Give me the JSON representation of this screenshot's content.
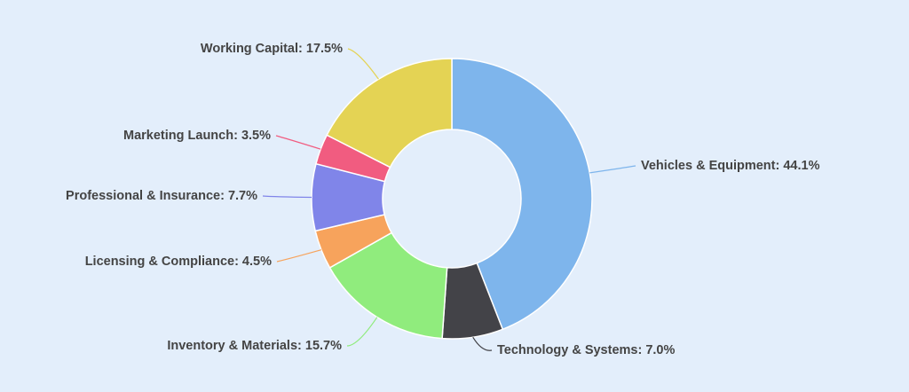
{
  "chart_data": {
    "type": "pie",
    "variant": "donut",
    "categories": [
      "Vehicles & Equipment",
      "Technology & Systems",
      "Inventory & Materials",
      "Licensing & Compliance",
      "Professional & Insurance",
      "Marketing Launch",
      "Working Capital"
    ],
    "values": [
      44.1,
      7.0,
      15.7,
      4.5,
      7.7,
      3.5,
      17.5
    ],
    "labels": [
      "Vehicles & Equipment: 44.1%",
      "Technology & Systems: 7.0%",
      "Inventory & Materials: 15.7%",
      "Licensing & Compliance: 4.5%",
      "Professional & Insurance: 7.7%",
      "Marketing Launch: 3.5%",
      "Working Capital: 17.5%"
    ],
    "colors": [
      "#7eb5ec",
      "#434348",
      "#90ec7d",
      "#f7a35c",
      "#8085e9",
      "#f15c80",
      "#e4d354"
    ],
    "unit": "%",
    "legend": "none"
  }
}
